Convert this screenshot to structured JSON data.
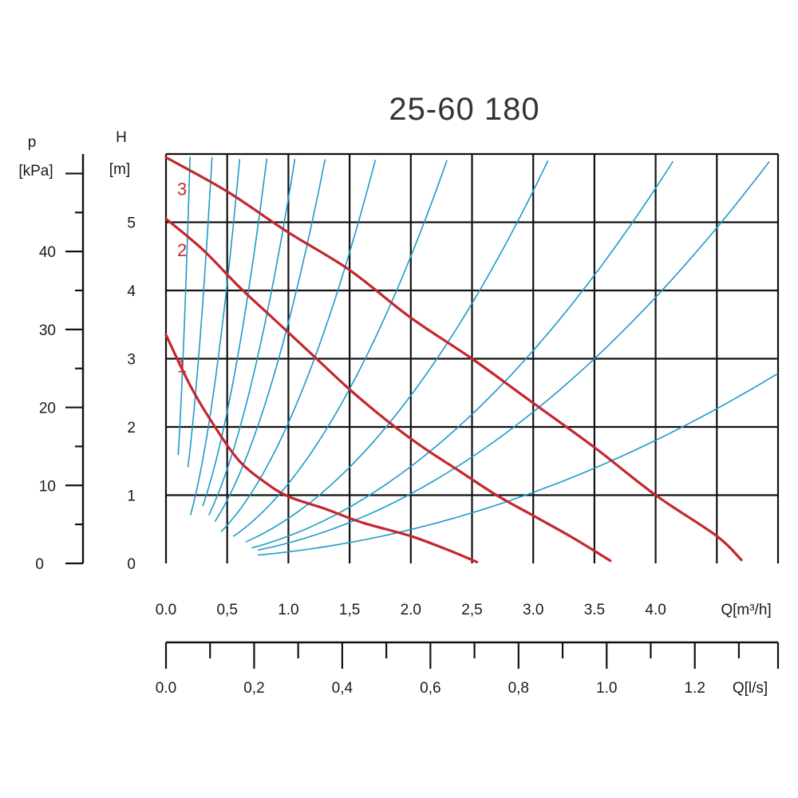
{
  "chart_data": {
    "type": "line",
    "title": "25-60 180",
    "y_left": {
      "label_top": "p",
      "label_unit": "[kPa]",
      "ticks": [
        "0",
        "10",
        "20",
        "30",
        "40"
      ],
      "range": [
        0,
        52.5
      ]
    },
    "y_inner": {
      "label_top": "H",
      "label_unit": "[m]",
      "ticks": [
        "0",
        "1",
        "2",
        "3",
        "4",
        "5"
      ],
      "range": [
        0,
        6
      ],
      "label_values": [
        0,
        1,
        2,
        3,
        4,
        5
      ]
    },
    "x_primary": {
      "label": "Q[m³/h]",
      "tick_labels": [
        "0.0",
        "0,5",
        "1.0",
        "1,5",
        "2.0",
        "2,5",
        "3.0",
        "3.5",
        "4.0"
      ],
      "tick_values": [
        0,
        0.5,
        1.0,
        1.5,
        2.0,
        2.5,
        3.0,
        3.5,
        4.0
      ],
      "range": [
        0,
        5.0
      ]
    },
    "x_secondary": {
      "label": "Q[l/s]",
      "tick_labels": [
        "0.0",
        "0,2",
        "0,4",
        "0,6",
        "0,8",
        "1.0",
        "1.2"
      ],
      "tick_values": [
        0,
        0.2,
        0.4,
        0.6,
        0.8,
        1.0,
        1.2
      ],
      "range": [
        0,
        1.3889
      ]
    },
    "grid": true,
    "series": [
      {
        "name": "1",
        "color": "#c4262e",
        "points": [
          [
            0,
            3.35
          ],
          [
            0.2,
            2.6
          ],
          [
            0.4,
            2.0
          ],
          [
            0.6,
            1.5
          ],
          [
            0.8,
            1.2
          ],
          [
            1.0,
            0.98
          ],
          [
            1.3,
            0.8
          ],
          [
            1.6,
            0.6
          ],
          [
            2.0,
            0.4
          ],
          [
            2.3,
            0.2
          ],
          [
            2.54,
            0.02
          ]
        ]
      },
      {
        "name": "2",
        "color": "#c4262e",
        "points": [
          [
            0,
            5.05
          ],
          [
            0.3,
            4.6
          ],
          [
            0.6,
            4.05
          ],
          [
            0.9,
            3.55
          ],
          [
            1.2,
            3.05
          ],
          [
            1.5,
            2.55
          ],
          [
            1.8,
            2.1
          ],
          [
            2.1,
            1.7
          ],
          [
            2.4,
            1.35
          ],
          [
            2.7,
            1.0
          ],
          [
            3.0,
            0.7
          ],
          [
            3.3,
            0.4
          ],
          [
            3.63,
            0.04
          ]
        ]
      },
      {
        "name": "3",
        "color": "#c4262e",
        "points": [
          [
            0,
            5.95
          ],
          [
            0.5,
            5.45
          ],
          [
            1.0,
            4.85
          ],
          [
            1.5,
            4.3
          ],
          [
            2.0,
            3.6
          ],
          [
            2.5,
            3.0
          ],
          [
            3.0,
            2.35
          ],
          [
            3.5,
            1.7
          ],
          [
            4.0,
            1.0
          ],
          [
            4.5,
            0.4
          ],
          [
            4.7,
            0.05
          ]
        ]
      }
    ],
    "system_curves": [
      {
        "k": 152.8,
        "q_start": 0.1
      },
      {
        "k": 41.67,
        "q_start": 0.18
      },
      {
        "k": 16.2,
        "q_start": 0.2
      },
      {
        "k": 8.66,
        "q_start": 0.3
      },
      {
        "k": 5.29,
        "q_start": 0.35
      },
      {
        "k": 3.47,
        "q_start": 0.4
      },
      {
        "k": 2.0,
        "q_start": 0.45
      },
      {
        "k": 1.11,
        "q_start": 0.55
      },
      {
        "k": 0.6,
        "q_start": 0.65
      },
      {
        "k": 0.34,
        "q_start": 0.7
      },
      {
        "k": 0.24,
        "q_start": 0.75
      },
      {
        "k": 0.109,
        "q_start": 0.75
      }
    ],
    "system_curve_color": "#1d9bc8"
  }
}
